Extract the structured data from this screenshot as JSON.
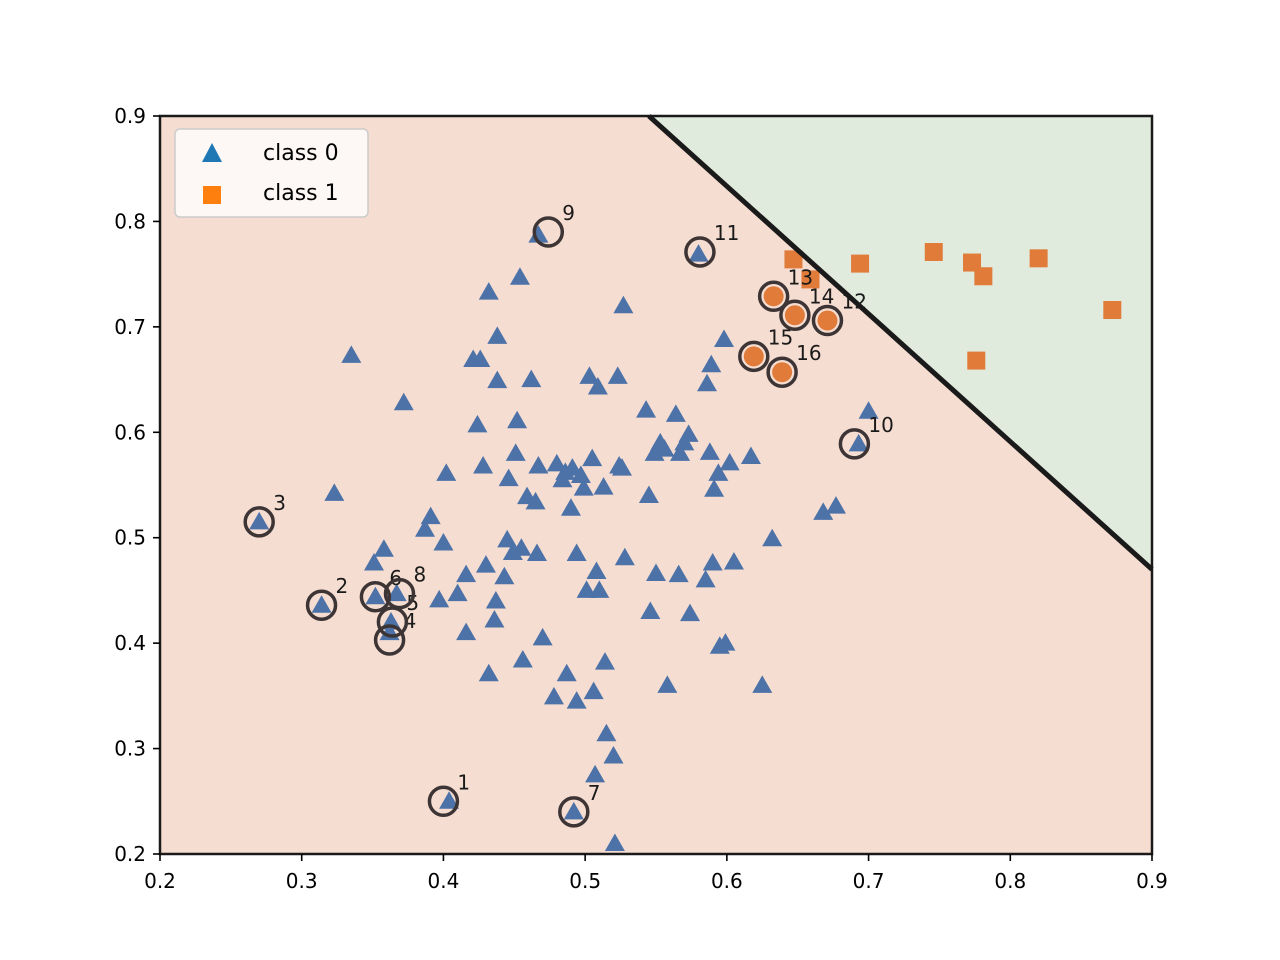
{
  "chart_data": {
    "type": "scatter",
    "xlim": [
      0.2,
      0.9
    ],
    "ylim": [
      0.2,
      0.9
    ],
    "x_ticks": [
      "0.2",
      "0.3",
      "0.4",
      "0.5",
      "0.6",
      "0.7",
      "0.8",
      "0.9"
    ],
    "y_ticks": [
      "0.2",
      "0.3",
      "0.4",
      "0.5",
      "0.6",
      "0.7",
      "0.8",
      "0.9"
    ],
    "grid": false,
    "legend_position": "top-left",
    "decision_boundary": {
      "points": [
        [
          0.545,
          0.9
        ],
        [
          0.9,
          0.47
        ]
      ],
      "region_class_0_color": "#f6ddd1",
      "region_class_1_color": "#e1ebdd",
      "line_color": "#1a1a1a"
    },
    "series": [
      {
        "name": "class 0",
        "marker": "triangle",
        "legend_color": "#1f77b4",
        "color": "#4c72a8",
        "points": [
          [
            0.27,
            0.515
          ],
          [
            0.314,
            0.436
          ],
          [
            0.323,
            0.542
          ],
          [
            0.335,
            0.673
          ],
          [
            0.351,
            0.476
          ],
          [
            0.352,
            0.444
          ],
          [
            0.358,
            0.489
          ],
          [
            0.362,
            0.41
          ],
          [
            0.363,
            0.42
          ],
          [
            0.367,
            0.447
          ],
          [
            0.372,
            0.628
          ],
          [
            0.387,
            0.508
          ],
          [
            0.391,
            0.52
          ],
          [
            0.397,
            0.441
          ],
          [
            0.4,
            0.495
          ],
          [
            0.402,
            0.561
          ],
          [
            0.404,
            0.25
          ],
          [
            0.41,
            0.447
          ],
          [
            0.416,
            0.465
          ],
          [
            0.416,
            0.41
          ],
          [
            0.421,
            0.669
          ],
          [
            0.424,
            0.607
          ],
          [
            0.426,
            0.669
          ],
          [
            0.428,
            0.568
          ],
          [
            0.43,
            0.474
          ],
          [
            0.432,
            0.371
          ],
          [
            0.432,
            0.733
          ],
          [
            0.436,
            0.422
          ],
          [
            0.437,
            0.44
          ],
          [
            0.438,
            0.649
          ],
          [
            0.438,
            0.691
          ],
          [
            0.443,
            0.463
          ],
          [
            0.445,
            0.498
          ],
          [
            0.446,
            0.556
          ],
          [
            0.449,
            0.486
          ],
          [
            0.451,
            0.58
          ],
          [
            0.452,
            0.611
          ],
          [
            0.454,
            0.747
          ],
          [
            0.455,
            0.49
          ],
          [
            0.456,
            0.384
          ],
          [
            0.459,
            0.539
          ],
          [
            0.462,
            0.65
          ],
          [
            0.465,
            0.534
          ],
          [
            0.466,
            0.485
          ],
          [
            0.467,
            0.568
          ],
          [
            0.467,
            0.787
          ],
          [
            0.47,
            0.405
          ],
          [
            0.478,
            0.349
          ],
          [
            0.48,
            0.57
          ],
          [
            0.484,
            0.555
          ],
          [
            0.486,
            0.562
          ],
          [
            0.487,
            0.371
          ],
          [
            0.49,
            0.528
          ],
          [
            0.491,
            0.566
          ],
          [
            0.492,
            0.24
          ],
          [
            0.494,
            0.345
          ],
          [
            0.494,
            0.485
          ],
          [
            0.497,
            0.559
          ],
          [
            0.499,
            0.547
          ],
          [
            0.501,
            0.45
          ],
          [
            0.503,
            0.653
          ],
          [
            0.505,
            0.575
          ],
          [
            0.506,
            0.354
          ],
          [
            0.507,
            0.275
          ],
          [
            0.508,
            0.468
          ],
          [
            0.509,
            0.643
          ],
          [
            0.51,
            0.45
          ],
          [
            0.513,
            0.548
          ],
          [
            0.514,
            0.382
          ],
          [
            0.515,
            0.314
          ],
          [
            0.52,
            0.293
          ],
          [
            0.521,
            0.21
          ],
          [
            0.523,
            0.653
          ],
          [
            0.524,
            0.568
          ],
          [
            0.526,
            0.566
          ],
          [
            0.527,
            0.72
          ],
          [
            0.528,
            0.481
          ],
          [
            0.543,
            0.621
          ],
          [
            0.545,
            0.54
          ],
          [
            0.546,
            0.43
          ],
          [
            0.549,
            0.58
          ],
          [
            0.55,
            0.466
          ],
          [
            0.553,
            0.59
          ],
          [
            0.556,
            0.584
          ],
          [
            0.558,
            0.36
          ],
          [
            0.564,
            0.617
          ],
          [
            0.566,
            0.465
          ],
          [
            0.567,
            0.58
          ],
          [
            0.57,
            0.59
          ],
          [
            0.573,
            0.598
          ],
          [
            0.574,
            0.428
          ],
          [
            0.58,
            0.769
          ],
          [
            0.585,
            0.46
          ],
          [
            0.586,
            0.646
          ],
          [
            0.588,
            0.581
          ],
          [
            0.589,
            0.664
          ],
          [
            0.59,
            0.476
          ],
          [
            0.591,
            0.546
          ],
          [
            0.594,
            0.561
          ],
          [
            0.595,
            0.397
          ],
          [
            0.598,
            0.688
          ],
          [
            0.599,
            0.4
          ],
          [
            0.602,
            0.571
          ],
          [
            0.605,
            0.477
          ],
          [
            0.617,
            0.577
          ],
          [
            0.625,
            0.36
          ],
          [
            0.632,
            0.499
          ],
          [
            0.668,
            0.524
          ],
          [
            0.677,
            0.53
          ],
          [
            0.693,
            0.589
          ],
          [
            0.7,
            0.62
          ]
        ]
      },
      {
        "name": "class 1",
        "marker": "square",
        "legend_color": "#ff7f0e",
        "color": "#e07b39",
        "points": [
          [
            0.647,
            0.764
          ],
          [
            0.659,
            0.745
          ],
          [
            0.694,
            0.76
          ],
          [
            0.746,
            0.771
          ],
          [
            0.773,
            0.761
          ],
          [
            0.776,
            0.668
          ],
          [
            0.781,
            0.748
          ],
          [
            0.82,
            0.765
          ],
          [
            0.872,
            0.716
          ]
        ]
      }
    ],
    "highlighted": [
      {
        "label": "1",
        "x": 0.4,
        "y": 0.25,
        "class": 0
      },
      {
        "label": "2",
        "x": 0.314,
        "y": 0.436,
        "class": 0
      },
      {
        "label": "3",
        "x": 0.27,
        "y": 0.515,
        "class": 0
      },
      {
        "label": "4",
        "x": 0.362,
        "y": 0.403,
        "class": 0
      },
      {
        "label": "5",
        "x": 0.364,
        "y": 0.42,
        "class": 0
      },
      {
        "label": "6",
        "x": 0.352,
        "y": 0.444,
        "class": 0
      },
      {
        "label": "7",
        "x": 0.492,
        "y": 0.24,
        "class": 0
      },
      {
        "label": "8",
        "x": 0.369,
        "y": 0.447,
        "class": 0
      },
      {
        "label": "9",
        "x": 0.474,
        "y": 0.79,
        "class": 0
      },
      {
        "label": "10",
        "x": 0.69,
        "y": 0.589,
        "class": 0
      },
      {
        "label": "11",
        "x": 0.581,
        "y": 0.771,
        "class": 0
      },
      {
        "label": "12",
        "x": 0.671,
        "y": 0.706,
        "class": 1
      },
      {
        "label": "13",
        "x": 0.633,
        "y": 0.729,
        "class": 1
      },
      {
        "label": "14",
        "x": 0.648,
        "y": 0.711,
        "class": 1
      },
      {
        "label": "15",
        "x": 0.619,
        "y": 0.672,
        "class": 1
      },
      {
        "label": "16",
        "x": 0.639,
        "y": 0.657,
        "class": 1
      }
    ]
  }
}
